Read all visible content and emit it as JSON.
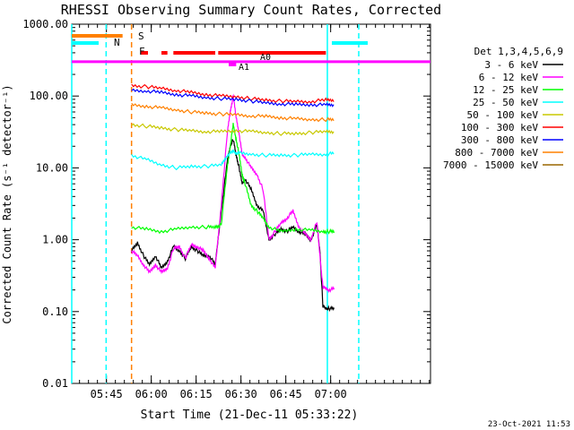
{
  "chart_data": {
    "type": "line",
    "title": "RHESSI Observing Summary Count Rates, Corrected",
    "xlabel": "Start Time (21-Dec-11 05:33:22)",
    "ylabel": "Corrected Count Rate (s⁻¹ detector⁻¹)",
    "y_scale": "log",
    "ylim": [
      0.01,
      1000
    ],
    "xlim_minutes": [
      0,
      120
    ],
    "y_ticks": [
      {
        "value": 1000,
        "label": "1000.00"
      },
      {
        "value": 100,
        "label": "100.00"
      },
      {
        "value": 10,
        "label": "10.00"
      },
      {
        "value": 1,
        "label": "1.00"
      },
      {
        "value": 0.1,
        "label": "0.10"
      },
      {
        "value": 0.01,
        "label": "0.01"
      }
    ],
    "x_ticks": [
      {
        "minute": 11.6,
        "label": "05:45"
      },
      {
        "minute": 26.6,
        "label": "06:00"
      },
      {
        "minute": 41.6,
        "label": "06:15"
      },
      {
        "minute": 56.6,
        "label": "06:30"
      },
      {
        "minute": 71.6,
        "label": "06:45"
      },
      {
        "minute": 86.6,
        "label": "07:00"
      }
    ],
    "legend_title": "Det 1,3,4,5,6,9",
    "legend_position": "right",
    "series": [
      {
        "name": "3 - 6 keV",
        "color": "#000000",
        "x": [
          20,
          22,
          24,
          26,
          28,
          30,
          32,
          34,
          36,
          38,
          40,
          42,
          44,
          46,
          48,
          50,
          52,
          53,
          54,
          55,
          56,
          57,
          58,
          60,
          62,
          64,
          66,
          68,
          70,
          72,
          74,
          76,
          78,
          80,
          82,
          83,
          84,
          85,
          86,
          88
        ],
        "values": [
          0.7,
          0.9,
          0.6,
          0.45,
          0.6,
          0.4,
          0.5,
          0.8,
          0.7,
          0.55,
          0.8,
          0.7,
          0.6,
          0.6,
          0.45,
          2.5,
          12,
          20,
          25,
          15,
          10,
          6,
          7,
          5,
          3,
          2.5,
          1,
          1.2,
          1.4,
          1.3,
          1.5,
          1.3,
          1.2,
          1.0,
          1.6,
          0.7,
          0.12,
          0.11,
          0.11,
          0.11
        ]
      },
      {
        "name": "6 - 12 keV",
        "color": "#ff00ff",
        "x": [
          20,
          22,
          24,
          26,
          28,
          30,
          32,
          34,
          36,
          38,
          40,
          42,
          44,
          46,
          48,
          50,
          52,
          53,
          54,
          55,
          56,
          57,
          58,
          60,
          62,
          64,
          66,
          68,
          70,
          72,
          74,
          76,
          78,
          80,
          82,
          83,
          84,
          85,
          86,
          88
        ],
        "values": [
          0.7,
          0.6,
          0.45,
          0.35,
          0.45,
          0.35,
          0.4,
          0.75,
          0.8,
          0.55,
          0.85,
          0.8,
          0.7,
          0.55,
          0.4,
          3,
          30,
          60,
          100,
          50,
          30,
          15,
          14,
          10,
          8,
          5,
          1,
          1.3,
          1.7,
          2.0,
          2.5,
          1.5,
          1.2,
          1.0,
          1.8,
          0.6,
          0.22,
          0.21,
          0.2,
          0.21
        ]
      },
      {
        "name": "12 - 25 keV",
        "color": "#00ff00",
        "x": [
          20,
          25,
          30,
          35,
          40,
          45,
          48,
          50,
          52,
          53,
          54,
          55,
          56,
          57,
          58,
          60,
          62,
          64,
          66,
          70,
          75,
          80,
          84,
          86,
          88
        ],
        "values": [
          1.5,
          1.4,
          1.3,
          1.4,
          1.5,
          1.5,
          1.5,
          1.6,
          10,
          20,
          40,
          25,
          15,
          8,
          6,
          3,
          2.5,
          2,
          1.5,
          1.3,
          1.4,
          1.35,
          1.3,
          1.3,
          1.3
        ]
      },
      {
        "name": "25 - 50 keV",
        "color": "#00ffff",
        "x": [
          20,
          25,
          30,
          35,
          40,
          45,
          50,
          52,
          54,
          55,
          56,
          60,
          65,
          70,
          75,
          80,
          85,
          88
        ],
        "values": [
          15,
          13,
          11,
          10,
          10.5,
          10.5,
          11,
          15,
          17,
          16,
          16,
          15.5,
          15,
          15,
          15,
          15.5,
          15.5,
          16
        ]
      },
      {
        "name": "50 - 100 keV",
        "color": "#c8c800",
        "x": [
          20,
          25,
          30,
          35,
          40,
          45,
          50,
          55,
          60,
          65,
          70,
          75,
          80,
          85,
          88
        ],
        "values": [
          40,
          38,
          36,
          34,
          33,
          32,
          32,
          33,
          32,
          31,
          30,
          30,
          31,
          32,
          32
        ]
      },
      {
        "name": "100 - 300 keV",
        "color": "#ff0000",
        "x": [
          20,
          25,
          30,
          35,
          40,
          45,
          50,
          55,
          60,
          65,
          70,
          75,
          80,
          85,
          88
        ],
        "values": [
          140,
          135,
          128,
          120,
          112,
          105,
          100,
          98,
          92,
          88,
          85,
          84,
          84,
          88,
          88
        ]
      },
      {
        "name": "300 - 800 keV",
        "color": "#0000ff",
        "x": [
          20,
          25,
          30,
          35,
          40,
          45,
          50,
          55,
          60,
          65,
          70,
          75,
          80,
          85,
          88
        ],
        "values": [
          120,
          118,
          112,
          105,
          100,
          95,
          92,
          90,
          85,
          80,
          78,
          76,
          76,
          75,
          75
        ]
      },
      {
        "name": "800 - 7000 keV",
        "color": "#ff8000",
        "x": [
          20,
          25,
          30,
          35,
          40,
          45,
          50,
          55,
          60,
          65,
          70,
          75,
          80,
          85,
          88
        ],
        "values": [
          75,
          72,
          68,
          64,
          60,
          58,
          56,
          55,
          53,
          52,
          50,
          48,
          47,
          47,
          47
        ]
      },
      {
        "name": "7000 - 15000 keV",
        "color": "#9a6600",
        "x": [
          20,
          53,
          63,
          82
        ],
        "values": [
          null,
          null,
          null,
          null
        ]
      }
    ],
    "flag_bars": [
      {
        "label": "S",
        "color": "#ff8000",
        "row": 1,
        "intervals": [
          [
            0,
            17
          ]
        ]
      },
      {
        "label": "N",
        "color": "#00ffff",
        "row": 2,
        "intervals": [
          [
            0,
            9
          ],
          [
            87,
            99
          ]
        ]
      },
      {
        "label": "F",
        "color": "#ff0000",
        "row": 3,
        "intervals": [
          [
            23,
            25.5
          ],
          [
            30,
            32
          ],
          [
            34,
            48
          ],
          [
            49,
            85
          ]
        ]
      },
      {
        "label": "A1",
        "color": "#ff00ff",
        "row": 5,
        "intervals": [
          [
            52.5,
            55
          ]
        ]
      },
      {
        "label": "A0",
        "color": "#ff00ff",
        "row": 4,
        "intervals": []
      }
    ],
    "saa_lines": [
      {
        "minute": 0,
        "color": "#00ffff",
        "style": "solid"
      },
      {
        "minute": 11.5,
        "color": "#00ffff",
        "style": "dashed"
      },
      {
        "minute": 20,
        "color": "#ff8000",
        "style": "dashed"
      },
      {
        "minute": 85.5,
        "color": "#00ffff",
        "style": "solid"
      },
      {
        "minute": 96,
        "color": "#00ffff",
        "style": "dashed"
      }
    ],
    "magenta_line_value": 300
  },
  "timestamp": "23-Oct-2021 11:53"
}
